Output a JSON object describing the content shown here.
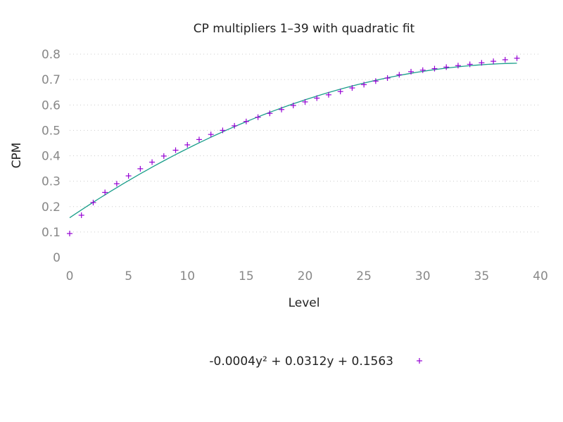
{
  "chart_data": {
    "type": "scatter",
    "title": "CP multipliers 1–39 with quadratic fit",
    "xlabel": "Level",
    "ylabel": "CPM",
    "xlim": [
      0,
      40
    ],
    "ylim": [
      0,
      0.8
    ],
    "x_ticks": [
      "0",
      "5",
      "10",
      "15",
      "20",
      "25",
      "30",
      "35",
      "40"
    ],
    "y_ticks": [
      "0",
      "0.1",
      "0.2",
      "0.3",
      "0.4",
      "0.5",
      "0.6",
      "0.7",
      "0.8"
    ],
    "grid": true,
    "legend_position": "bottom-center",
    "series": [
      {
        "kind": "points",
        "marker": "plus",
        "color": "#9400d3",
        "x": [
          0,
          1,
          2,
          3,
          4,
          5,
          6,
          7,
          8,
          9,
          10,
          11,
          12,
          13,
          14,
          15,
          16,
          17,
          18,
          19,
          20,
          21,
          22,
          23,
          24,
          25,
          26,
          27,
          28,
          29,
          30,
          31,
          32,
          33,
          34,
          35,
          36,
          37,
          38
        ],
        "y": [
          0.094,
          0.166,
          0.216,
          0.256,
          0.29,
          0.321,
          0.349,
          0.375,
          0.399,
          0.422,
          0.443,
          0.464,
          0.484,
          0.5,
          0.518,
          0.535,
          0.552,
          0.567,
          0.582,
          0.598,
          0.612,
          0.627,
          0.64,
          0.653,
          0.667,
          0.68,
          0.694,
          0.706,
          0.719,
          0.731,
          0.737,
          0.743,
          0.749,
          0.755,
          0.76,
          0.766,
          0.772,
          0.778,
          0.784
        ]
      },
      {
        "kind": "fit",
        "color": "#1a9e8a",
        "x_range": [
          0,
          38
        ],
        "coefficients": {
          "a": -0.0004,
          "b": 0.0312,
          "c": 0.1563
        }
      }
    ],
    "legend": {
      "label": "-0.0004y² + 0.0312y + 0.1563"
    }
  }
}
